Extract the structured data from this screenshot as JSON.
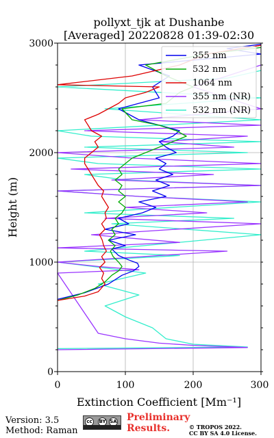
{
  "chart_data": {
    "type": "line",
    "title": "pollyxt_tjk at Dushanbe",
    "subtitle": "[Averaged] 20220828 01:39-02:30",
    "xlabel": "Extinction Coefficient [Mm⁻¹]",
    "ylabel": "Height (m)",
    "xlim": [
      0,
      300
    ],
    "ylim": [
      0,
      3000
    ],
    "x_ticks": [
      "0",
      "100",
      "200",
      "300"
    ],
    "y_ticks": [
      "0",
      "1000",
      "2000",
      "3000"
    ],
    "grid": true,
    "legend_position": "top-right",
    "series": [
      {
        "name": "355 nm",
        "color": "#0000ee",
        "x": [
          0,
          40,
          75,
          95,
          112,
          120,
          118,
          105,
          90,
          80,
          100,
          75,
          115,
          70,
          105,
          90,
          125,
          145,
          120,
          160,
          140,
          165,
          145,
          170,
          150,
          160,
          145,
          175,
          160,
          150,
          170,
          180,
          120,
          90,
          150,
          140,
          165,
          120,
          300,
          250,
          300
        ],
        "y": [
          660,
          720,
          800,
          880,
          920,
          960,
          990,
          1020,
          1060,
          1120,
          1150,
          1200,
          1250,
          1300,
          1350,
          1400,
          1450,
          1500,
          1550,
          1600,
          1650,
          1700,
          1750,
          1800,
          1850,
          1900,
          1950,
          2000,
          2050,
          2100,
          2150,
          2200,
          2300,
          2400,
          2500,
          2600,
          2700,
          2800,
          2900,
          2950,
          2990
        ]
      },
      {
        "name": "532 nm",
        "color": "#00aa00",
        "x": [
          0,
          30,
          55,
          70,
          80,
          90,
          95,
          90,
          82,
          78,
          85,
          75,
          85,
          80,
          90,
          85,
          95,
          100,
          90,
          100,
          90,
          95,
          85,
          95,
          90,
          100,
          110,
          130,
          150,
          170,
          190,
          175,
          150,
          110,
          95,
          160,
          170,
          180,
          200,
          160,
          130,
          220,
          300
        ],
        "y": [
          650,
          700,
          760,
          820,
          880,
          920,
          960,
          1000,
          1050,
          1100,
          1150,
          1200,
          1250,
          1300,
          1350,
          1400,
          1450,
          1500,
          1550,
          1600,
          1650,
          1700,
          1750,
          1800,
          1850,
          1900,
          1950,
          2000,
          2050,
          2100,
          2150,
          2200,
          2250,
          2300,
          2400,
          2450,
          2500,
          2550,
          2600,
          2700,
          2800,
          2900,
          2960
        ]
      },
      {
        "name": "1064 nm",
        "color": "#dd0000",
        "x": [
          0,
          40,
          60,
          70,
          65,
          68,
          62,
          70,
          65,
          72,
          68,
          66,
          62,
          70,
          65,
          72,
          70,
          75,
          70,
          65,
          68,
          60,
          55,
          50,
          45,
          40,
          40,
          50,
          60,
          55,
          65,
          50,
          45,
          40,
          60,
          75,
          90,
          100,
          130,
          150,
          0,
          110,
          180,
          220,
          300
        ],
        "y": [
          650,
          690,
          730,
          800,
          850,
          900,
          950,
          1000,
          1050,
          1100,
          1150,
          1200,
          1250,
          1300,
          1350,
          1400,
          1450,
          1500,
          1550,
          1600,
          1650,
          1700,
          1750,
          1800,
          1850,
          1900,
          1950,
          2000,
          2050,
          2100,
          2150,
          2200,
          2250,
          2300,
          2350,
          2400,
          2450,
          2500,
          2550,
          2600,
          2620,
          2700,
          2800,
          2900,
          2980
        ]
      },
      {
        "name": "355 nm (NR)",
        "color": "#9933ff",
        "x": [
          0,
          280,
          200,
          150,
          100,
          60,
          0,
          120,
          60,
          0,
          150,
          250,
          0,
          180,
          50,
          300,
          70,
          220,
          100,
          280,
          120,
          0,
          300,
          80,
          230,
          20,
          300,
          110,
          0,
          260,
          150,
          280,
          40,
          300,
          120,
          300,
          200,
          300
        ],
        "y": [
          200,
          220,
          240,
          260,
          300,
          350,
          900,
          930,
          960,
          1000,
          1060,
          1100,
          1130,
          1180,
          1250,
          1350,
          1400,
          1450,
          1500,
          1550,
          1600,
          1650,
          1700,
          1750,
          1800,
          1850,
          1900,
          1950,
          2000,
          2050,
          2100,
          2150,
          2200,
          2250,
          2300,
          2400,
          2600,
          2800
        ]
      },
      {
        "name": "532 nm (NR)",
        "color": "#33eecc",
        "x": [
          0,
          280,
          200,
          160,
          140,
          100,
          70,
          120,
          60,
          130,
          0,
          180,
          40,
          300,
          80,
          260,
          40,
          300,
          120,
          0,
          300,
          100,
          40,
          300,
          60,
          0,
          280,
          40,
          300,
          50,
          0,
          300,
          70,
          300,
          0,
          250,
          300
        ],
        "y": [
          210,
          225,
          250,
          300,
          400,
          500,
          600,
          700,
          800,
          900,
          1000,
          1060,
          1100,
          1250,
          1350,
          1400,
          1450,
          1550,
          1600,
          1650,
          1700,
          1750,
          1800,
          1850,
          1900,
          1950,
          2000,
          2050,
          2100,
          2150,
          2200,
          2300,
          2400,
          2500,
          2600,
          2680,
          2750
        ]
      }
    ]
  },
  "footer": {
    "version": "Version: 3.5",
    "method": "Method: Raman",
    "license_badge": [
      "cc",
      "BY",
      "SA"
    ],
    "preliminary_line1": "Preliminary",
    "preliminary_line2": "Results.",
    "copyright_line1": "© TROPOS 2022.",
    "copyright_line2": "CC BY SA 4.0 License."
  }
}
